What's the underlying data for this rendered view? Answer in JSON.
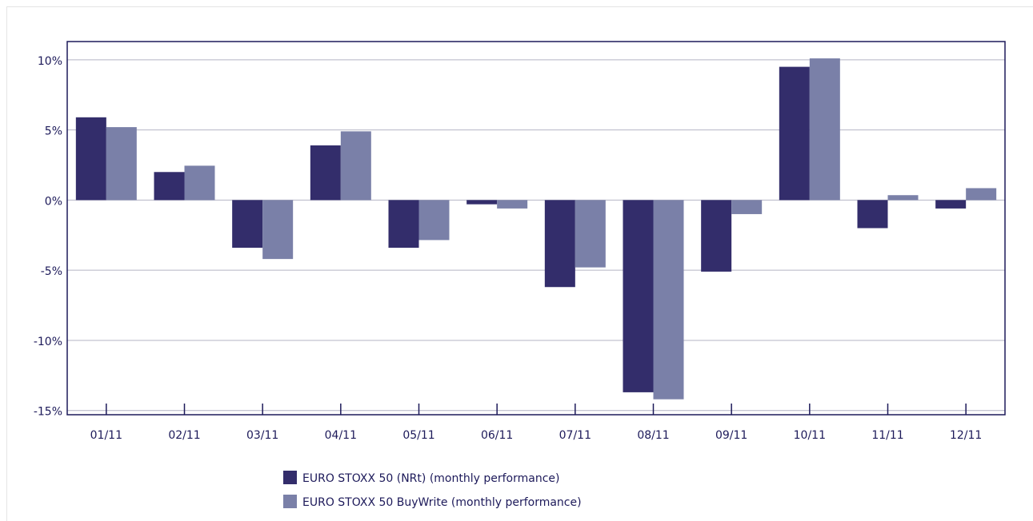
{
  "chart_data": {
    "type": "bar",
    "categories": [
      "01/11",
      "02/11",
      "03/11",
      "04/11",
      "05/11",
      "06/11",
      "07/11",
      "08/11",
      "09/11",
      "10/11",
      "11/11",
      "12/11"
    ],
    "series": [
      {
        "name": "EURO STOXX 50 (NRt) (monthly performance)",
        "color": "#332d6b",
        "values": [
          5.9,
          2.0,
          -3.4,
          3.9,
          -3.4,
          -0.3,
          -6.2,
          -13.7,
          -5.1,
          9.5,
          -2.0,
          -0.6
        ]
      },
      {
        "name": "EURO STOXX 50 BuyWrite (monthly performance)",
        "color": "#7a80a8",
        "values": [
          5.2,
          2.45,
          -4.2,
          4.9,
          -2.85,
          -0.6,
          -4.8,
          -14.2,
          -1.0,
          10.1,
          0.35,
          0.85
        ]
      }
    ],
    "ylim": [
      -15.3,
      11.3
    ],
    "yticks": [
      {
        "value": -15,
        "label": "-15%"
      },
      {
        "value": -10,
        "label": "-10%"
      },
      {
        "value": -5,
        "label": "-5%"
      },
      {
        "value": 0,
        "label": "0%"
      },
      {
        "value": 5,
        "label": "5%"
      },
      {
        "value": 10,
        "label": "10%"
      }
    ],
    "grid": true
  }
}
